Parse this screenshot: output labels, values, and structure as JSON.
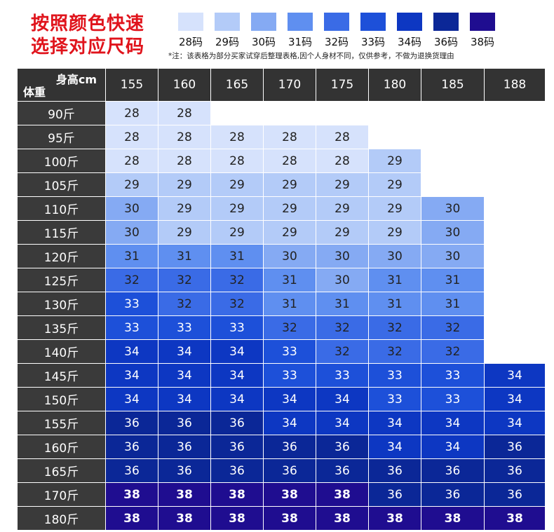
{
  "header": {
    "title_lines": [
      "按照颜色快速",
      "选择对应尺码"
    ],
    "note": "*注：该表格为部分买家试穿后整理表格,因个人身材不同，仅供参考，不做为退换货理由"
  },
  "legend": [
    {
      "label": "28码",
      "color": "#d6e2fc"
    },
    {
      "label": "29码",
      "color": "#b3cbf8"
    },
    {
      "label": "30码",
      "color": "#85aaf3"
    },
    {
      "label": "31码",
      "color": "#5f8ff0"
    },
    {
      "label": "32码",
      "color": "#3a6be6"
    },
    {
      "label": "33码",
      "color": "#1d50d9"
    },
    {
      "label": "34码",
      "color": "#0d37c2"
    },
    {
      "label": "36码",
      "color": "#0b2797"
    },
    {
      "label": "38码",
      "color": "#1f0d90"
    }
  ],
  "table": {
    "corner_top": "身高cm",
    "corner_bottom": "体重",
    "columns": [
      "155",
      "160",
      "165",
      "170",
      "175",
      "180",
      "185",
      "188"
    ],
    "rows": [
      {
        "label": "90斤",
        "cells": [
          28,
          28,
          null,
          null,
          null,
          null,
          null,
          null
        ]
      },
      {
        "label": "95斤",
        "cells": [
          28,
          28,
          28,
          28,
          28,
          null,
          null,
          null
        ]
      },
      {
        "label": "100斤",
        "cells": [
          28,
          28,
          28,
          28,
          28,
          29,
          null,
          null
        ]
      },
      {
        "label": "105斤",
        "cells": [
          29,
          29,
          29,
          29,
          29,
          29,
          null,
          null
        ]
      },
      {
        "label": "110斤",
        "cells": [
          30,
          29,
          29,
          29,
          29,
          29,
          30,
          null
        ]
      },
      {
        "label": "115斤",
        "cells": [
          30,
          29,
          29,
          29,
          29,
          29,
          30,
          null
        ]
      },
      {
        "label": "120斤",
        "cells": [
          31,
          31,
          31,
          30,
          30,
          30,
          30,
          null
        ]
      },
      {
        "label": "125斤",
        "cells": [
          32,
          32,
          32,
          31,
          30,
          31,
          31,
          null
        ]
      },
      {
        "label": "130斤",
        "cells": [
          33,
          32,
          32,
          31,
          31,
          31,
          31,
          null
        ]
      },
      {
        "label": "135斤",
        "cells": [
          33,
          33,
          33,
          32,
          32,
          32,
          32,
          null
        ]
      },
      {
        "label": "140斤",
        "cells": [
          34,
          34,
          34,
          33,
          32,
          32,
          32,
          null
        ]
      },
      {
        "label": "145斤",
        "cells": [
          34,
          34,
          34,
          33,
          33,
          33,
          33,
          34
        ]
      },
      {
        "label": "150斤",
        "cells": [
          34,
          34,
          34,
          34,
          34,
          33,
          33,
          34
        ]
      },
      {
        "label": "155斤",
        "cells": [
          36,
          36,
          36,
          34,
          34,
          34,
          34,
          34
        ]
      },
      {
        "label": "160斤",
        "cells": [
          36,
          36,
          36,
          36,
          36,
          34,
          34,
          36
        ]
      },
      {
        "label": "165斤",
        "cells": [
          36,
          36,
          36,
          36,
          36,
          36,
          36,
          36
        ]
      },
      {
        "label": "170斤",
        "cells": [
          38,
          38,
          38,
          38,
          38,
          36,
          36,
          36
        ]
      },
      {
        "label": "180斤",
        "cells": [
          38,
          38,
          38,
          38,
          38,
          38,
          38,
          38
        ]
      }
    ]
  }
}
